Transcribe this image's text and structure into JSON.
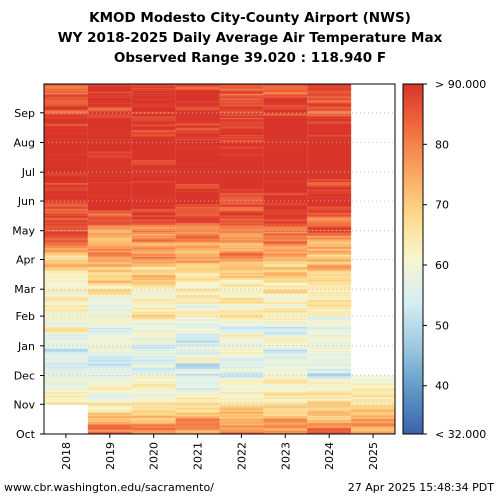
{
  "title": {
    "line1": "KMOD Modesto City-County Airport (NWS)",
    "line2": "WY 2018-2025 Daily Average Air Temperature Max",
    "line3": "Observed Range 39.020 : 118.940 F"
  },
  "footer": {
    "left": "www.cbr.washington.edu/sacramento/",
    "right": "27 Apr 2025 15:48:34 PDT"
  },
  "chart_data": {
    "type": "heatmap",
    "x_categories": [
      "2018",
      "2019",
      "2020",
      "2021",
      "2022",
      "2023",
      "2024",
      "2025"
    ],
    "y_ticks": [
      "Oct",
      "Nov",
      "Dec",
      "Jan",
      "Feb",
      "Mar",
      "Apr",
      "May",
      "Jun",
      "Jul",
      "Aug",
      "Sep"
    ],
    "y_axis": "water-year day (Oct 1 at bottom, Sep 30 at top)",
    "colorbar": {
      "min": 32,
      "max": 90,
      "tick_values": [
        40,
        50,
        60,
        70,
        80
      ],
      "tick_labels": [
        "40",
        "50",
        "60",
        "70",
        "80"
      ],
      "top_label": "> 90.000",
      "bottom_label": "< 32.000",
      "colormap": [
        "#3a62ad",
        "#5f97c7",
        "#9ec9e0",
        "#d6eef4",
        "#f8f6cf",
        "#fdd989",
        "#fba55e",
        "#f06b40",
        "#d9352a"
      ]
    },
    "coverage": [
      {
        "year": "2018",
        "start_month": "Nov",
        "end_month": "Sep"
      },
      {
        "year": "2019",
        "start_month": "Oct",
        "end_month": "Sep"
      },
      {
        "year": "2020",
        "start_month": "Oct",
        "end_month": "Sep"
      },
      {
        "year": "2021",
        "start_month": "Oct",
        "end_month": "Sep"
      },
      {
        "year": "2022",
        "start_month": "Oct",
        "end_month": "Sep"
      },
      {
        "year": "2023",
        "start_month": "Oct",
        "end_month": "Sep"
      },
      {
        "year": "2024",
        "start_month": "Oct",
        "end_month": "Sep"
      },
      {
        "year": "2025",
        "start_month": "Oct",
        "end_month": "Nov"
      }
    ],
    "monthly_profile": {
      "months": [
        "Oct",
        "Nov",
        "Dec",
        "Jan",
        "Feb",
        "Mar",
        "Apr",
        "May",
        "Jun",
        "Jul",
        "Aug",
        "Sep"
      ],
      "approx_values_F": [
        80,
        67,
        57,
        56,
        61,
        65,
        73,
        82,
        90,
        95,
        94,
        88
      ]
    },
    "data_values": "about 2,600 daily values; not printed on the chart and not recoverable at this resolution"
  }
}
